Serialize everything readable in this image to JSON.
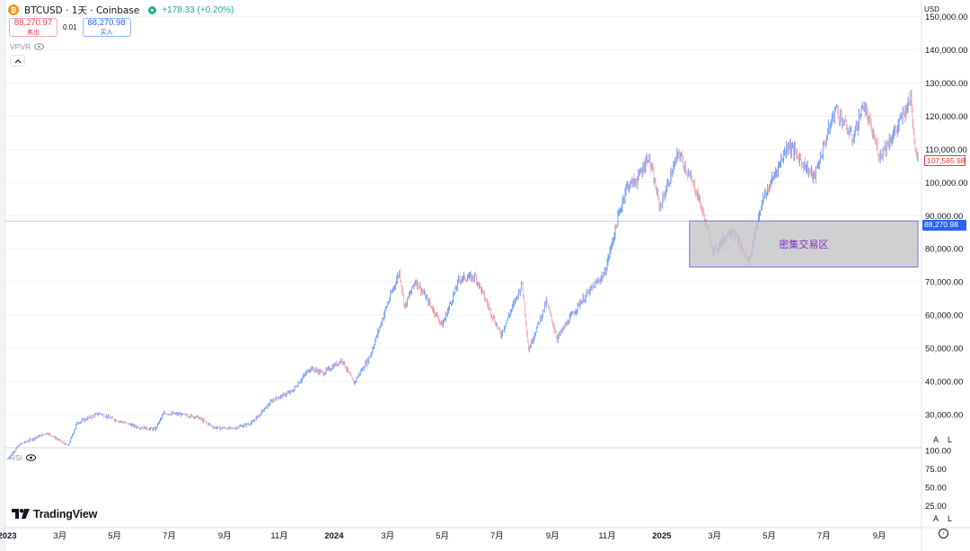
{
  "header": {
    "symbol_title": "BTCUSD · 1天 · Coinbase",
    "price_change": "+178.33 (+0.20%)",
    "icon": "bitcoin-icon"
  },
  "trade": {
    "sell_price": "88,270.97",
    "sell_label": "卖出",
    "spread": "0.01",
    "buy_price": "88,270.98",
    "buy_label": "买入"
  },
  "indicators": {
    "vpvr_label": "VPVR",
    "rsi_label": "RSI"
  },
  "price_axis": {
    "currency": "USD",
    "labels": [
      "150,000.00",
      "140,000.00",
      "130,000.00",
      "120,000.00",
      "110,000.00",
      "100,000.00",
      "90,000.00",
      "80,000.00",
      "70,000.00",
      "60,000.00",
      "50,000.00",
      "40,000.00",
      "30,000.00"
    ],
    "last_price": "107,585.98",
    "current_price": "88,270.98",
    "auto_label": "A",
    "log_label": "L"
  },
  "rsi_axis": {
    "labels": [
      "100.00",
      "75.00",
      "50.00",
      "25.00"
    ],
    "auto_label": "A",
    "log_label": "L"
  },
  "time_axis": {
    "labels": [
      {
        "t": "2023",
        "bold": true
      },
      {
        "t": "3月",
        "bold": false
      },
      {
        "t": "5月",
        "bold": false
      },
      {
        "t": "7月",
        "bold": false
      },
      {
        "t": "9月",
        "bold": false
      },
      {
        "t": "11月",
        "bold": false
      },
      {
        "t": "2024",
        "bold": true
      },
      {
        "t": "3月",
        "bold": false
      },
      {
        "t": "5月",
        "bold": false
      },
      {
        "t": "7月",
        "bold": false
      },
      {
        "t": "9月",
        "bold": false
      },
      {
        "t": "11月",
        "bold": false
      },
      {
        "t": "2025",
        "bold": true
      },
      {
        "t": "3月",
        "bold": false
      },
      {
        "t": "5月",
        "bold": false
      },
      {
        "t": "7月",
        "bold": false
      },
      {
        "t": "9月",
        "bold": false
      }
    ]
  },
  "zone": {
    "label": "密集交易区",
    "low": 74500,
    "high": 88400,
    "start": "2025-02-01",
    "fill": "#c4c4c8",
    "stroke": "#7c6fe0"
  },
  "branding": {
    "logo_text": "TradingView",
    "logo_icon": "tradingview-logo-icon"
  },
  "colors": {
    "up": "#5b8ff9",
    "down": "#f4a0a8",
    "positive": "#22ab94",
    "negative": "#f23645",
    "accent": "#2962ff"
  },
  "chart_data": {
    "type": "candlestick",
    "symbol": "BTCUSD",
    "interval": "1天",
    "exchange": "Coinbase",
    "y_range": [
      20000,
      155000
    ],
    "x_range": [
      "2023-01-01",
      "2025-10-14"
    ],
    "price_path": [
      [
        "2023-01-01",
        16600
      ],
      [
        "2023-01-15",
        21000
      ],
      [
        "2023-02-01",
        23000
      ],
      [
        "2023-02-15",
        24500
      ],
      [
        "2023-03-10",
        20500
      ],
      [
        "2023-03-20",
        27500
      ],
      [
        "2023-04-14",
        30400
      ],
      [
        "2023-05-01",
        28500
      ],
      [
        "2023-05-25",
        26400
      ],
      [
        "2023-06-15",
        25500
      ],
      [
        "2023-06-25",
        30500
      ],
      [
        "2023-07-15",
        30000
      ],
      [
        "2023-08-01",
        29300
      ],
      [
        "2023-08-20",
        26100
      ],
      [
        "2023-09-10",
        25800
      ],
      [
        "2023-10-01",
        27500
      ],
      [
        "2023-10-25",
        34500
      ],
      [
        "2023-11-15",
        37000
      ],
      [
        "2023-12-05",
        44000
      ],
      [
        "2023-12-20",
        42500
      ],
      [
        "2024-01-10",
        46500
      ],
      [
        "2024-01-23",
        39500
      ],
      [
        "2024-02-10",
        47500
      ],
      [
        "2024-02-28",
        62000
      ],
      [
        "2024-03-14",
        73000
      ],
      [
        "2024-03-20",
        62500
      ],
      [
        "2024-04-01",
        70500
      ],
      [
        "2024-05-01",
        57000
      ],
      [
        "2024-05-20",
        71000
      ],
      [
        "2024-06-07",
        71500
      ],
      [
        "2024-07-05",
        54000
      ],
      [
        "2024-07-29",
        69500
      ],
      [
        "2024-08-05",
        49500
      ],
      [
        "2024-08-25",
        64000
      ],
      [
        "2024-09-06",
        53000
      ],
      [
        "2024-10-01",
        63500
      ],
      [
        "2024-10-29",
        72500
      ],
      [
        "2024-11-12",
        88000
      ],
      [
        "2024-11-22",
        98500
      ],
      [
        "2024-12-05",
        101000
      ],
      [
        "2024-12-17",
        108000
      ],
      [
        "2024-12-30",
        92500
      ],
      [
        "2025-01-20",
        109000
      ],
      [
        "2025-02-10",
        96500
      ],
      [
        "2025-02-28",
        79000
      ],
      [
        "2025-03-20",
        86000
      ],
      [
        "2025-04-08",
        76000
      ],
      [
        "2025-04-22",
        93500
      ],
      [
        "2025-05-22",
        111500
      ],
      [
        "2025-06-20",
        101500
      ],
      [
        "2025-07-14",
        122500
      ],
      [
        "2025-08-02",
        113000
      ],
      [
        "2025-08-14",
        123500
      ],
      [
        "2025-09-01",
        108000
      ],
      [
        "2025-09-20",
        116000
      ],
      [
        "2025-10-06",
        125500
      ],
      [
        "2025-10-11",
        110500
      ],
      [
        "2025-10-14",
        107585.98
      ]
    ],
    "last_price": 107585.98,
    "current_price": 88270.98,
    "annotation": {
      "text": "密集交易区",
      "price_low": 74500,
      "price_high": 88400,
      "from": "2025-02-01"
    },
    "rsi_levels": [
      100,
      75,
      50,
      25
    ]
  }
}
